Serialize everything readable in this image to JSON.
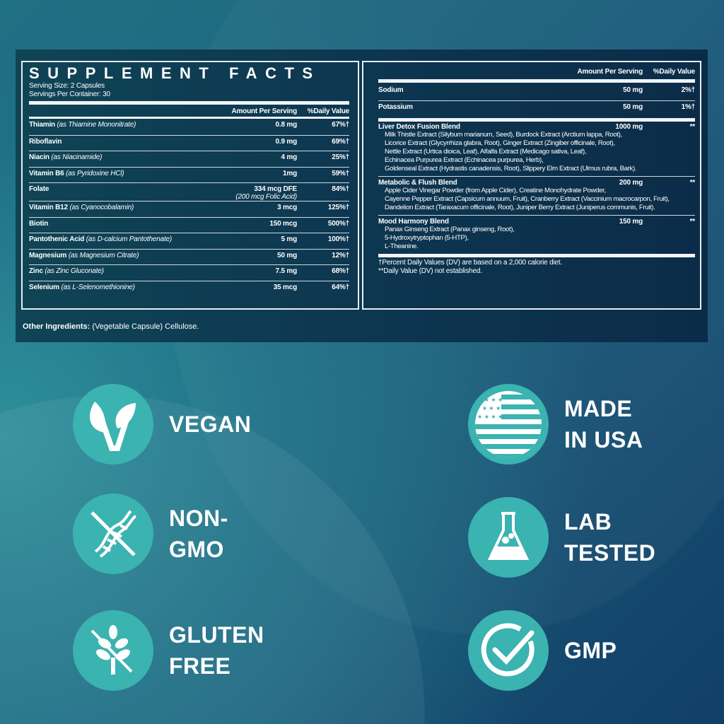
{
  "facts": {
    "title": "SUPPLEMENT FACTS",
    "serving_size": "Serving Size: 2 Capsules",
    "servings_per_container": "Servings Per Container: 30",
    "col_amount": "Amount Per Serving",
    "col_dv": "%Daily Value",
    "left_rows": [
      {
        "name": "Thiamin",
        "source": "(as Thiamine Mononitrate)",
        "amount": "0.8 mg",
        "dv": "67%†"
      },
      {
        "name": "Riboflavin",
        "source": "",
        "amount": "0.9 mg",
        "dv": "69%†"
      },
      {
        "name": "Niacin",
        "source": "(as Niacinamide)",
        "amount": "4 mg",
        "dv": "25%†"
      },
      {
        "name": "Vitamin B6",
        "source": "(as Pyridoxine HCl)",
        "amount": "1mg",
        "dv": "59%†"
      },
      {
        "name": "Folate",
        "source": "",
        "amount": "334 mcg DFE",
        "amount_note": "(200 mcg Folic Acid)",
        "dv": "84%†"
      },
      {
        "name": "Vitamin B12",
        "source": "(as Cyanocobalamin)",
        "amount": "3 mcg",
        "dv": "125%†"
      },
      {
        "name": "Biotin",
        "source": "",
        "amount": "150 mcg",
        "dv": "500%†"
      },
      {
        "name": "Pantothenic Acid",
        "source": "(as D-calcium Pantothenate)",
        "amount": "5 mg",
        "dv": "100%†"
      },
      {
        "name": "Magnesium",
        "source": "(as Magnesium Citrate)",
        "amount": "50 mg",
        "dv": "12%†"
      },
      {
        "name": "Zinc",
        "source": "(as Zinc Gluconate)",
        "amount": "7.5 mg",
        "dv": "68%†"
      },
      {
        "name": "Selenium",
        "source": "(as L-Selenomethionine)",
        "amount": "35 mcg",
        "dv": "64%†"
      }
    ],
    "right_rows": [
      {
        "name": "Sodium",
        "amount": "50 mg",
        "dv": "2%†"
      },
      {
        "name": "Potassium",
        "amount": "50 mg",
        "dv": "1%†"
      }
    ],
    "blends": [
      {
        "name": "Liver Detox Fusion Blend",
        "amount": "1000 mg",
        "dv": "**",
        "lines": [
          "Milk Thistle Extract (Silybum marianum, Seed), Burdock Extract (Arctium lappa, Root),",
          "Licorice Extract (Glycyrrhiza glabra, Root), Ginger Extract (Zingiber officinale, Root),",
          "Nettle Extract (Urtica dioica, Leaf), Alfalfa Extract (Medicago sativa, Leaf),",
          "Echinacea Purpurea Extract (Echinacea purpurea, Herb),",
          "Goldenseal Extract (Hydrastis canadensis, Root), Slippery Elm Extract (Ulmus rubra, Bark)."
        ]
      },
      {
        "name": "Metabolic & Flush Blend",
        "amount": "200 mg",
        "dv": "**",
        "lines": [
          "Apple Cider Vinegar Powder (from Apple Cider), Creatine Monohydrate Powder,",
          "Cayenne Pepper Extract (Capsicum annuum, Fruit), Cranberry Extract (Vaccinium macrocarpon, Fruit),",
          "Dandelion Extract (Taraxacum officinale, Root), Juniper Berry Extract (Juniperus communis, Fruit)."
        ]
      },
      {
        "name": "Mood Harmony Blend",
        "amount": "150 mg",
        "dv": "**",
        "lines": [
          "Panax Ginseng Extract (Panax ginseng, Root),",
          "5-Hydroxytryptophan (5-HTP),",
          "L-Theanine."
        ]
      }
    ],
    "footnote_1": "†Percent Daily Values (DV) are based on a 2,000 calorie diet.",
    "footnote_2": "**Daily Value (DV) not established.",
    "other_label": "Other Ingredients:",
    "other_value": " (Vegetable Capsule) Cellulose."
  },
  "badges": {
    "vegan": {
      "l1": "VEGAN",
      "icon": "leaf-v-icon"
    },
    "nongmo": {
      "l1": "NON-",
      "l2": "GMO",
      "icon": "crossed-dna-icon"
    },
    "gluten": {
      "l1": "GLUTEN",
      "l2": "FREE",
      "icon": "crossed-wheat-icon"
    },
    "usa": {
      "l1": "MADE",
      "l2": "IN USA",
      "icon": "us-flag-icon"
    },
    "lab": {
      "l1": "LAB",
      "l2": "TESTED",
      "icon": "flask-icon"
    },
    "gmp": {
      "l1": "GMP",
      "icon": "check-circle-icon"
    }
  },
  "colors": {
    "badge": "#3ab3b1",
    "panel": "#0d3550"
  }
}
